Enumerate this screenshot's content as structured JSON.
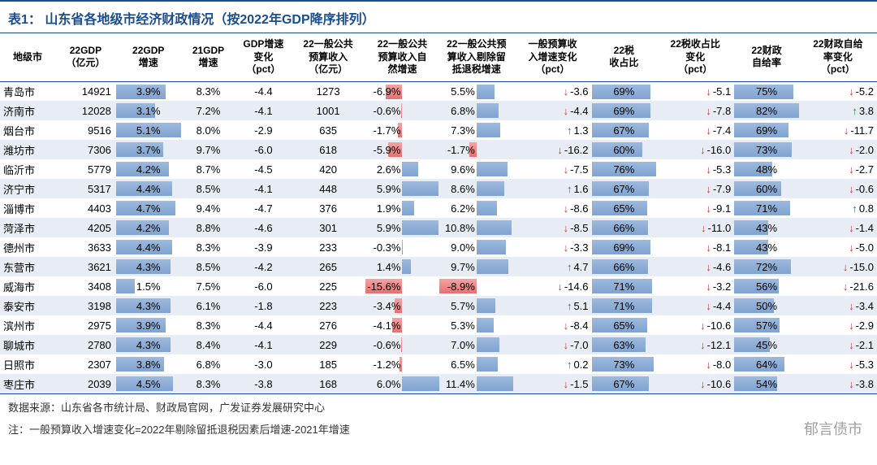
{
  "title": "表1：   山东省各地级市经济财政情况（按2022年GDP降序排列）",
  "columns": [
    "地级市",
    "22GDP\n（亿元）",
    "22GDP\n增速",
    "21GDP\n增速",
    "GDP增速\n变化\n（pct）",
    "22一般公共\n预算收入\n（亿元）",
    "22一般公共\n预算收入自\n然增速",
    "22一般公共预\n算收入剔除留\n抵退税增速",
    "一般预算收\n入增速变化\n（pct）",
    "22税\n收占比",
    "22税收占比\n变化\n（pct）",
    "22财政\n自给率",
    "22财政自给\n率变化\n（pct）"
  ],
  "colors": {
    "header": "#1a4d8f",
    "altRow": "#e8edf5",
    "barPos": "#7fa3d0",
    "barNeg": "#e86f6f",
    "arrowDown": "#c0392b",
    "arrowUp": "#1e8449"
  },
  "bars": {
    "gdp_growth": {
      "max": 5.1
    },
    "nat_growth": {
      "negMax": 15.6,
      "posMax": 6.0
    },
    "ex_growth": {
      "negMax": 8.9,
      "posMax": 11.4
    },
    "tax_ratio": {
      "max": 76
    },
    "self_suff": {
      "max": 82
    }
  },
  "rows": [
    {
      "city": "青岛市",
      "gdp": 14921,
      "gdp_g": 3.9,
      "gdp21": 8.3,
      "gdp_chg": -4.4,
      "rev": 1273,
      "nat_g": -6.9,
      "ex_g": 5.5,
      "rev_chg": -3.6,
      "rev_dir": "down",
      "tax": 69,
      "tax_chg": -5.1,
      "tax_dir": "down",
      "ss": 75,
      "ss_chg": -5.2,
      "ss_dir": "down"
    },
    {
      "city": "济南市",
      "gdp": 12028,
      "gdp_g": 3.1,
      "gdp21": 7.2,
      "gdp_chg": -4.1,
      "rev": 1001,
      "nat_g": -0.6,
      "ex_g": 6.8,
      "rev_chg": -4.4,
      "rev_dir": "down",
      "tax": 69,
      "tax_chg": -7.8,
      "tax_dir": "down",
      "ss": 82,
      "ss_chg": 3.8,
      "ss_dir": "up"
    },
    {
      "city": "烟台市",
      "gdp": 9516,
      "gdp_g": 5.1,
      "gdp21": 8.0,
      "gdp_chg": -2.9,
      "rev": 635,
      "nat_g": -1.7,
      "ex_g": 7.3,
      "rev_chg": 1.3,
      "rev_dir": "up",
      "tax": 67,
      "tax_chg": -7.4,
      "tax_dir": "down",
      "ss": 69,
      "ss_chg": -11.7,
      "ss_dir": "down"
    },
    {
      "city": "潍坊市",
      "gdp": 7306,
      "gdp_g": 3.7,
      "gdp21": 9.7,
      "gdp_chg": -6.0,
      "rev": 618,
      "nat_g": -5.9,
      "ex_g": -1.7,
      "rev_chg": -16.2,
      "rev_dir": "down",
      "tax": 60,
      "tax_chg": -16.0,
      "tax_dir": "down",
      "ss": 73,
      "ss_chg": -2.0,
      "ss_dir": "down"
    },
    {
      "city": "临沂市",
      "gdp": 5779,
      "gdp_g": 4.2,
      "gdp21": 8.7,
      "gdp_chg": -4.5,
      "rev": 420,
      "nat_g": 2.6,
      "ex_g": 9.6,
      "rev_chg": -7.5,
      "rev_dir": "down",
      "tax": 76,
      "tax_chg": -5.3,
      "tax_dir": "down",
      "ss": 48,
      "ss_chg": -2.7,
      "ss_dir": "down"
    },
    {
      "city": "济宁市",
      "gdp": 5317,
      "gdp_g": 4.4,
      "gdp21": 8.5,
      "gdp_chg": -4.1,
      "rev": 448,
      "nat_g": 5.9,
      "ex_g": 8.6,
      "rev_chg": 1.6,
      "rev_dir": "up",
      "tax": 67,
      "tax_chg": -7.9,
      "tax_dir": "down",
      "ss": 60,
      "ss_chg": -0.6,
      "ss_dir": "down"
    },
    {
      "city": "淄博市",
      "gdp": 4403,
      "gdp_g": 4.7,
      "gdp21": 9.4,
      "gdp_chg": -4.7,
      "rev": 376,
      "nat_g": 1.9,
      "ex_g": 6.2,
      "rev_chg": -8.6,
      "rev_dir": "down",
      "tax": 65,
      "tax_chg": -9.1,
      "tax_dir": "down",
      "ss": 71,
      "ss_chg": 0.8,
      "ss_dir": "up"
    },
    {
      "city": "菏泽市",
      "gdp": 4205,
      "gdp_g": 4.2,
      "gdp21": 8.8,
      "gdp_chg": -4.6,
      "rev": 301,
      "nat_g": 5.9,
      "ex_g": 10.8,
      "rev_chg": -8.5,
      "rev_dir": "down",
      "tax": 66,
      "tax_chg": -11.0,
      "tax_dir": "down",
      "ss": 43,
      "ss_chg": -1.4,
      "ss_dir": "down"
    },
    {
      "city": "德州市",
      "gdp": 3633,
      "gdp_g": 4.4,
      "gdp21": 8.3,
      "gdp_chg": -3.9,
      "rev": 233,
      "nat_g": -0.3,
      "ex_g": 9.0,
      "rev_chg": -3.3,
      "rev_dir": "down",
      "tax": 69,
      "tax_chg": -8.1,
      "tax_dir": "down",
      "ss": 43,
      "ss_chg": -5.0,
      "ss_dir": "down"
    },
    {
      "city": "东营市",
      "gdp": 3621,
      "gdp_g": 4.3,
      "gdp21": 8.5,
      "gdp_chg": -4.2,
      "rev": 265,
      "nat_g": 1.4,
      "ex_g": 9.7,
      "rev_chg": 4.7,
      "rev_dir": "up",
      "tax": 66,
      "tax_chg": -4.6,
      "tax_dir": "down",
      "ss": 72,
      "ss_chg": -15.0,
      "ss_dir": "down"
    },
    {
      "city": "威海市",
      "gdp": 3408,
      "gdp_g": 1.5,
      "gdp21": 7.5,
      "gdp_chg": -6.0,
      "rev": 225,
      "nat_g": -15.6,
      "ex_g": -8.9,
      "rev_chg": -14.6,
      "rev_dir": "down",
      "tax": 71,
      "tax_chg": -3.2,
      "tax_dir": "down",
      "ss": 56,
      "ss_chg": -21.6,
      "ss_dir": "down"
    },
    {
      "city": "泰安市",
      "gdp": 3198,
      "gdp_g": 4.3,
      "gdp21": 6.1,
      "gdp_chg": -1.8,
      "rev": 223,
      "nat_g": -3.4,
      "ex_g": 5.7,
      "rev_chg": 5.1,
      "rev_dir": "up",
      "tax": 71,
      "tax_chg": -4.4,
      "tax_dir": "down",
      "ss": 50,
      "ss_chg": -3.4,
      "ss_dir": "down"
    },
    {
      "city": "滨州市",
      "gdp": 2975,
      "gdp_g": 3.9,
      "gdp21": 8.3,
      "gdp_chg": -4.4,
      "rev": 276,
      "nat_g": -4.1,
      "ex_g": 5.3,
      "rev_chg": -8.4,
      "rev_dir": "down",
      "tax": 65,
      "tax_chg": -10.6,
      "tax_dir": "down",
      "ss": 57,
      "ss_chg": -2.9,
      "ss_dir": "down"
    },
    {
      "city": "聊城市",
      "gdp": 2780,
      "gdp_g": 4.3,
      "gdp21": 8.4,
      "gdp_chg": -4.1,
      "rev": 229,
      "nat_g": -0.6,
      "ex_g": 7.0,
      "rev_chg": -7.0,
      "rev_dir": "down",
      "tax": 63,
      "tax_chg": -12.1,
      "tax_dir": "down",
      "ss": 45,
      "ss_chg": -2.1,
      "ss_dir": "down"
    },
    {
      "city": "日照市",
      "gdp": 2307,
      "gdp_g": 3.8,
      "gdp21": 6.8,
      "gdp_chg": -3.0,
      "rev": 185,
      "nat_g": -1.2,
      "ex_g": 6.5,
      "rev_chg": 0.2,
      "rev_dir": "up",
      "tax": 73,
      "tax_chg": -8.0,
      "tax_dir": "down",
      "ss": 64,
      "ss_chg": -5.3,
      "ss_dir": "down"
    },
    {
      "city": "枣庄市",
      "gdp": 2039,
      "gdp_g": 4.5,
      "gdp21": 8.3,
      "gdp_chg": -3.8,
      "rev": 168,
      "nat_g": 6.0,
      "ex_g": 11.4,
      "rev_chg": -1.5,
      "rev_dir": "down",
      "tax": 67,
      "tax_chg": -10.6,
      "tax_dir": "down",
      "ss": 54,
      "ss_chg": -3.8,
      "ss_dir": "down"
    }
  ],
  "source": "数据来源：山东省各市统计局、财政局官网，广发证券发展研究中心",
  "note": "注：一般预算收入增速变化=2022年剔除留抵退税因素后增速-2021年增速",
  "watermark": "郁言债市"
}
